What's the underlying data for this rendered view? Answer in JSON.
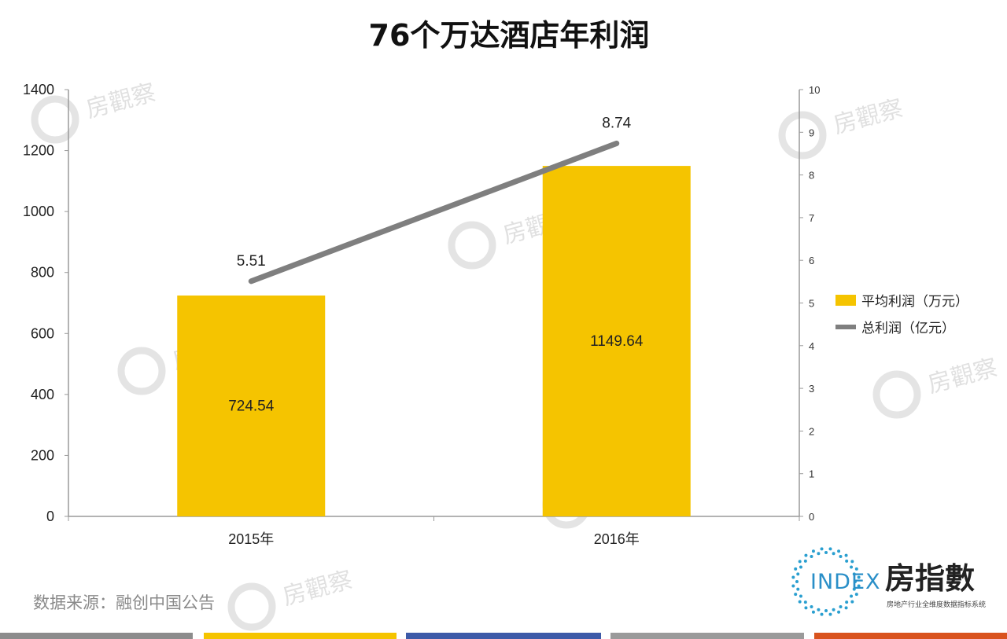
{
  "chart_data": {
    "type": "bar",
    "title": "76个万达酒店年利润",
    "categories": [
      "2015年",
      "2016年"
    ],
    "series": [
      {
        "name": "平均利润（万元）",
        "type": "bar",
        "axis": "left",
        "values": [
          724.54,
          1149.64
        ],
        "data_labels": [
          "724.54",
          "1149.64"
        ],
        "color": "#f5c400"
      },
      {
        "name": "总利润（亿元）",
        "type": "line",
        "axis": "right",
        "values": [
          5.51,
          8.74
        ],
        "data_labels": [
          "5.51",
          "8.74"
        ],
        "color": "#7f7f7f"
      }
    ],
    "ylim": [
      0,
      1400
    ],
    "y_ticks": [
      "0",
      "200",
      "400",
      "600",
      "800",
      "1000",
      "1200",
      "1400"
    ],
    "y2lim": [
      0,
      10
    ],
    "y2_ticks": [
      "0",
      "1",
      "2",
      "3",
      "4",
      "5",
      "6",
      "7",
      "8",
      "9",
      "10"
    ],
    "grid": false,
    "legend_position": "right"
  },
  "source_note": "数据来源：融创中国公告",
  "logo": {
    "en": "INDEX",
    "cn": "房指數",
    "sub": "房地产行业全维度数据指标系统"
  },
  "watermark": {
    "text": "房觀察"
  },
  "footer_colors": [
    "#8c8c8c",
    "#f5c400",
    "#3d5aa8",
    "#9a9a9a",
    "#d9531e"
  ]
}
